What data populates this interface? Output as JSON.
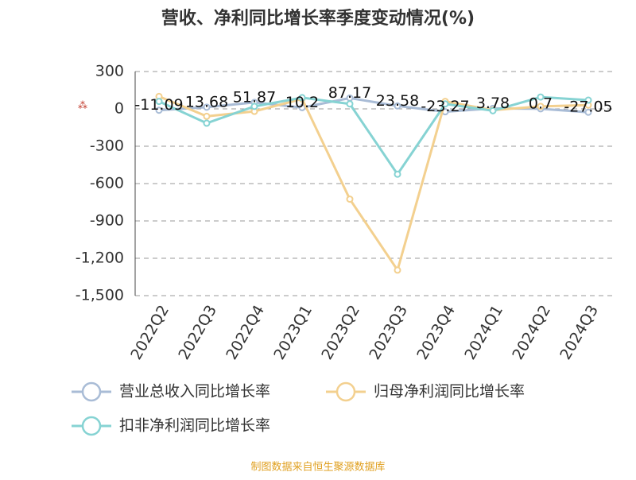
{
  "chart_data": {
    "type": "line",
    "title": "营收、净利同比增长率季度变动情况(%)",
    "categories": [
      "2022Q2",
      "2022Q3",
      "2022Q4",
      "2023Q1",
      "2023Q2",
      "2023Q3",
      "2023Q4",
      "2024Q1",
      "2024Q2",
      "2024Q3"
    ],
    "series": [
      {
        "name": "营业总收入同比增长率",
        "color": "#a9bcd6",
        "values": [
          -11.09,
          13.68,
          51.87,
          10.2,
          87.17,
          23.58,
          -23.27,
          3.78,
          0.7,
          -27.05
        ]
      },
      {
        "name": "归母净利润同比增长率",
        "color": "#f3d08f",
        "values": [
          100,
          -60,
          -20,
          80,
          -725,
          -1295,
          60,
          -10,
          20,
          30
        ]
      },
      {
        "name": "扣非净利润同比增长率",
        "color": "#86d3d3",
        "values": [
          60,
          -115,
          20,
          90,
          40,
          -525,
          40,
          -15,
          95,
          70
        ]
      }
    ],
    "ylim": [
      -1500,
      300
    ],
    "yticks": [
      300,
      0,
      -300,
      -600,
      -900,
      {
        "value": -1200,
        "label": "-1,200"
      },
      {
        "value": -1500,
        "label": "-1,500"
      }
    ],
    "grid": true,
    "data_labels_series": 0,
    "footer": "制图数据来自恒生聚源数据库"
  }
}
